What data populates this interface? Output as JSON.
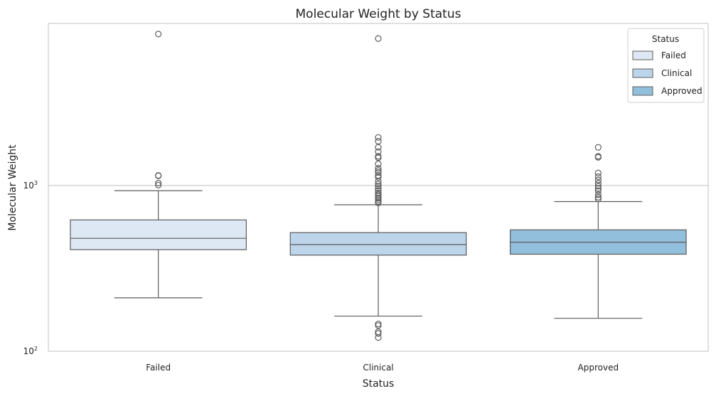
{
  "chart_data": {
    "type": "box",
    "title": "Molecular Weight by Status",
    "xlabel": "Status",
    "ylabel": "Molecular Weight",
    "yscale": "log",
    "ylim": [
      100,
      9500
    ],
    "y_ticks": [
      {
        "value": 100,
        "base": "10",
        "exp": "2"
      },
      {
        "value": 1000,
        "base": "10",
        "exp": "3"
      }
    ],
    "grid": "horizontal",
    "categories": [
      "Failed",
      "Clinical",
      "Approved"
    ],
    "boxes": [
      {
        "category": "Failed",
        "color": "#dde8f4",
        "whisker_low": 210,
        "q1": 410,
        "median": 480,
        "q3": 620,
        "whisker_high": 930,
        "outliers": [
          8200,
          1150,
          1145,
          1035,
          1005
        ]
      },
      {
        "category": "Clinical",
        "color": "#bcd5ea",
        "whisker_low": 163,
        "q1": 380,
        "median": 440,
        "q3": 520,
        "whisker_high": 765,
        "outliers": [
          7700,
          1950,
          1850,
          1700,
          1600,
          1500,
          1470,
          1350,
          1270,
          1230,
          1200,
          1150,
          1120,
          1060,
          1020,
          990,
          960,
          930,
          900,
          880,
          860,
          840,
          820,
          800,
          785,
          146,
          143,
          131,
          128,
          121
        ]
      },
      {
        "category": "Approved",
        "color": "#92bfdb",
        "whisker_low": 158,
        "q1": 385,
        "median": 455,
        "q3": 540,
        "whisker_high": 800,
        "outliers": [
          1700,
          1500,
          1480,
          1190,
          1130,
          1080,
          1030,
          990,
          960,
          930,
          880,
          850,
          830
        ]
      }
    ],
    "legend": {
      "title": "Status",
      "position": "top-right",
      "entries": [
        {
          "label": "Failed",
          "color": "#dde8f4"
        },
        {
          "label": "Clinical",
          "color": "#bcd5ea"
        },
        {
          "label": "Approved",
          "color": "#92bfdb"
        }
      ]
    },
    "colors": {
      "frame": "#cccccc",
      "grid": "#cccccc",
      "box_edge": "#5c5c5c"
    }
  }
}
